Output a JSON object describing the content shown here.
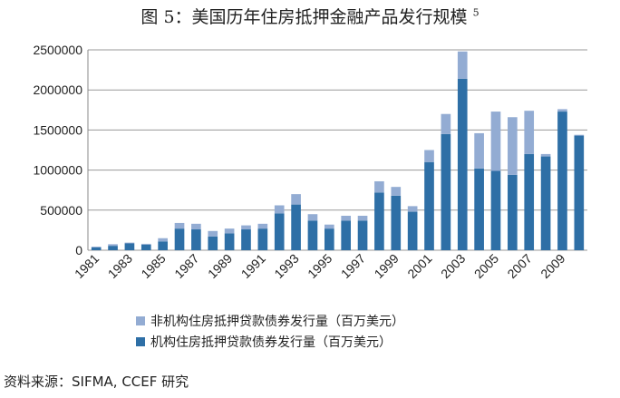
{
  "title": "图 5：美国历年住房抵押金融产品发行规模",
  "title_sup": "5",
  "source": "资料来源：SIFMA, CCEF 研究",
  "chart_data": {
    "type": "bar",
    "stacked": true,
    "categories": [
      "1981",
      "1982",
      "1983",
      "1984",
      "1985",
      "1986",
      "1987",
      "1988",
      "1989",
      "1990",
      "1991",
      "1992",
      "1993",
      "1994",
      "1995",
      "1996",
      "1997",
      "1998",
      "1999",
      "2000",
      "2001",
      "2002",
      "2003",
      "2004",
      "2005",
      "2006",
      "2007",
      "2008",
      "2009",
      "2010"
    ],
    "x_tick_labels": [
      "1981",
      "1983",
      "1985",
      "1987",
      "1989",
      "1991",
      "1993",
      "1995",
      "1997",
      "1999",
      "2001",
      "2003",
      "2005",
      "2007",
      "2009"
    ],
    "y_ticks": [
      "0",
      "500000",
      "1000000",
      "1500000",
      "2000000",
      "2500000"
    ],
    "ylim": [
      0,
      2500000
    ],
    "grid": true,
    "legend_position": "bottom",
    "series": [
      {
        "name": "机构住房抵押贷款债券发行量（百万美元）",
        "color": "#2e6fa6",
        "values": [
          35000,
          55000,
          85000,
          70000,
          110000,
          270000,
          260000,
          170000,
          210000,
          260000,
          270000,
          460000,
          570000,
          370000,
          270000,
          370000,
          370000,
          720000,
          680000,
          480000,
          1100000,
          1450000,
          2140000,
          1020000,
          990000,
          940000,
          1200000,
          1170000,
          1730000,
          1430000
        ]
      },
      {
        "name": "非机构住房抵押贷款债券发行量（百万美元）",
        "color": "#93acd3",
        "values": [
          10000,
          20000,
          10000,
          10000,
          40000,
          70000,
          70000,
          70000,
          60000,
          50000,
          60000,
          100000,
          130000,
          80000,
          50000,
          60000,
          60000,
          140000,
          110000,
          70000,
          150000,
          250000,
          340000,
          440000,
          740000,
          720000,
          540000,
          30000,
          30000,
          10000
        ]
      }
    ]
  }
}
